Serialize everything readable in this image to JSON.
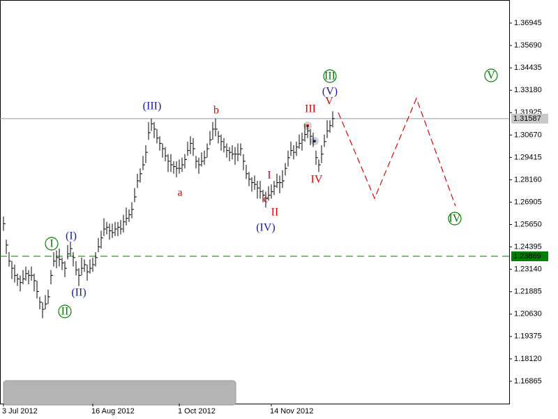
{
  "chart_data": {
    "type": "ohlc",
    "bar_color": "#000000",
    "ylim": [
      1.1561,
      1.3824
    ],
    "xlim": [
      -1.25,
      181.25
    ],
    "yticks": [
      1.16865,
      {
        "value": 1.1812,
        "label": "1.18120"
      },
      1.19375,
      {
        "value": 1.2063,
        "label": "1.20630"
      },
      1.21885,
      {
        "value": 1.2314,
        "label": "1.23140"
      },
      1.24395,
      {
        "value": 1.2565,
        "label": "1.25650"
      },
      1.26905,
      {
        "value": 1.2816,
        "label": "1.28160"
      },
      1.29415,
      {
        "value": 1.3067,
        "label": "1.30670"
      },
      1.31925,
      {
        "value": 1.3318,
        "label": "1.33180"
      },
      1.34435,
      {
        "value": 1.3569,
        "label": "1.35690"
      },
      1.36945
    ],
    "xticks": [
      {
        "value": 0,
        "label": "3 Jul 2012"
      },
      {
        "value": 32,
        "label": "16 Aug 2012"
      },
      {
        "value": 63,
        "label": "1 Oct 2012"
      },
      {
        "value": 96,
        "label": "14 Nov 2012"
      }
    ],
    "high": [
      1.261,
      1.248,
      1.241,
      1.236,
      1.234,
      1.229,
      1.228,
      1.231,
      1.233,
      1.231,
      1.233,
      1.229,
      1.225,
      1.216,
      1.213,
      1.217,
      1.22,
      1.231,
      1.241,
      1.242,
      1.243,
      1.238,
      1.236,
      1.245,
      1.247,
      1.241,
      1.236,
      1.232,
      1.238,
      1.237,
      1.234,
      1.237,
      1.238,
      1.241,
      1.249,
      1.253,
      1.26,
      1.258,
      1.257,
      1.257,
      1.258,
      1.258,
      1.259,
      1.262,
      1.266,
      1.265,
      1.269,
      1.277,
      1.285,
      1.288,
      1.295,
      1.301,
      1.314,
      1.316,
      1.314,
      1.31,
      1.306,
      1.302,
      1.3,
      1.296,
      1.296,
      1.292,
      1.292,
      1.293,
      1.294,
      1.296,
      1.303,
      1.306,
      1.305,
      1.295,
      1.294,
      1.297,
      1.298,
      1.302,
      1.309,
      1.314,
      1.316,
      1.309,
      1.307,
      1.305,
      1.302,
      1.3,
      1.301,
      1.3,
      1.302,
      1.302,
      1.296,
      1.29,
      1.286,
      1.283,
      1.284,
      1.281,
      1.281,
      1.276,
      1.275,
      1.278,
      1.279,
      1.281,
      1.285,
      1.284,
      1.287,
      1.291,
      1.298,
      1.303,
      1.301,
      1.303,
      1.307,
      1.308,
      1.313,
      1.312,
      1.31,
      1.308,
      1.298,
      1.293,
      1.301,
      1.307,
      1.315,
      1.315,
      1.32
    ],
    "low": [
      1.253,
      1.24,
      1.233,
      1.226,
      1.224,
      1.222,
      1.219,
      1.223,
      1.225,
      1.223,
      1.225,
      1.219,
      1.215,
      1.209,
      1.204,
      1.209,
      1.212,
      1.223,
      1.233,
      1.232,
      1.233,
      1.231,
      1.227,
      1.237,
      1.239,
      1.233,
      1.228,
      1.222,
      1.228,
      1.23,
      1.225,
      1.229,
      1.23,
      1.233,
      1.241,
      1.243,
      1.25,
      1.251,
      1.248,
      1.249,
      1.25,
      1.25,
      1.251,
      1.252,
      1.256,
      1.258,
      1.26,
      1.269,
      1.277,
      1.28,
      1.287,
      1.291,
      1.304,
      1.309,
      1.305,
      1.302,
      1.298,
      1.294,
      1.292,
      1.286,
      1.286,
      1.285,
      1.283,
      1.285,
      1.286,
      1.288,
      1.295,
      1.296,
      1.295,
      1.288,
      1.285,
      1.289,
      1.29,
      1.294,
      1.301,
      1.304,
      1.306,
      1.302,
      1.298,
      1.297,
      1.294,
      1.292,
      1.293,
      1.29,
      1.292,
      1.295,
      1.287,
      1.282,
      1.278,
      1.275,
      1.276,
      1.271,
      1.271,
      1.269,
      1.266,
      1.27,
      1.271,
      1.273,
      1.277,
      1.274,
      1.277,
      1.284,
      1.289,
      1.295,
      1.293,
      1.295,
      1.299,
      1.298,
      1.303,
      1.305,
      1.301,
      1.3,
      1.29,
      1.286,
      1.291,
      1.3,
      1.305,
      1.308,
      1.311
    ],
    "close": [
      1.257,
      1.245,
      1.236,
      1.232,
      1.228,
      1.226,
      1.224,
      1.226,
      1.229,
      1.228,
      1.228,
      1.225,
      1.219,
      1.213,
      1.209,
      1.212,
      1.216,
      1.228,
      1.236,
      1.238,
      1.237,
      1.235,
      1.232,
      1.24,
      1.243,
      1.238,
      1.231,
      1.228,
      1.232,
      1.234,
      1.23,
      1.232,
      1.234,
      1.238,
      1.244,
      1.249,
      1.254,
      1.255,
      1.253,
      1.252,
      1.254,
      1.255,
      1.254,
      1.258,
      1.26,
      1.262,
      1.265,
      1.272,
      1.281,
      1.285,
      1.29,
      1.297,
      1.308,
      1.313,
      1.31,
      1.305,
      1.302,
      1.299,
      1.295,
      1.292,
      1.29,
      1.289,
      1.288,
      1.288,
      1.29,
      1.293,
      1.298,
      1.302,
      1.299,
      1.292,
      1.29,
      1.292,
      1.294,
      1.299,
      1.304,
      1.31,
      1.31,
      1.306,
      1.303,
      1.3,
      1.298,
      1.297,
      1.296,
      1.296,
      1.296,
      1.299,
      1.292,
      1.285,
      1.282,
      1.28,
      1.279,
      1.277,
      1.275,
      1.273,
      1.271,
      1.273,
      1.275,
      1.278,
      1.28,
      1.28,
      1.281,
      1.288,
      1.294,
      1.298,
      1.297,
      1.3,
      1.302,
      1.304,
      1.307,
      1.309,
      1.306,
      1.303,
      1.294,
      1.29,
      1.296,
      1.303,
      1.309,
      1.312,
      1.3159
    ],
    "levels": [
      {
        "value": 1.31587,
        "color": "#8a9ab0",
        "label_bg": "#c8c8c8",
        "dashed": false
      },
      {
        "value": 1.23869,
        "color": "#008000",
        "label_bg": "#008000",
        "dashed": true
      }
    ],
    "forecast": {
      "x": [
        120,
        133,
        148,
        162
      ],
      "y": [
        1.3193,
        1.2712,
        1.3272,
        1.2669
      ],
      "color": "#e00000"
    },
    "annotations": [
      {
        "text": "(III)",
        "color": "#1a1aa8",
        "circled": false
      },
      {
        "text": "b",
        "color": "#e00000",
        "circled": false
      },
      {
        "text": "a",
        "color": "#e00000",
        "circled": false
      },
      {
        "text": "I",
        "color": "#e00000",
        "circled": false
      },
      {
        "text": "c",
        "color": "#e00000",
        "circled": false
      },
      {
        "text": "II",
        "color": "#e00000",
        "circled": false
      },
      {
        "text": "(IV)",
        "color": "#1a1aa8",
        "circled": false
      },
      {
        "text": "III",
        "color": "#e00000",
        "circled": false
      },
      {
        "text": "(V)",
        "color": "#1a1aa8",
        "circled": false
      },
      {
        "text": "V",
        "color": "#e00000",
        "circled": false
      },
      {
        "text": "IV",
        "color": "#e00000",
        "circled": false
      },
      {
        "text": "III",
        "color": "#008000",
        "circled": true
      },
      {
        "text": "V",
        "color": "#008000",
        "circled": true
      },
      {
        "text": "IV",
        "color": "#008000",
        "circled": true
      },
      {
        "text": "I",
        "color": "#008000",
        "circled": true
      },
      {
        "text": "(I)",
        "color": "#1a1aa8",
        "circled": false
      },
      {
        "text": "(II)",
        "color": "#1a1aa8",
        "circled": false
      },
      {
        "text": "II",
        "color": "#008000",
        "circled": true
      }
    ]
  }
}
